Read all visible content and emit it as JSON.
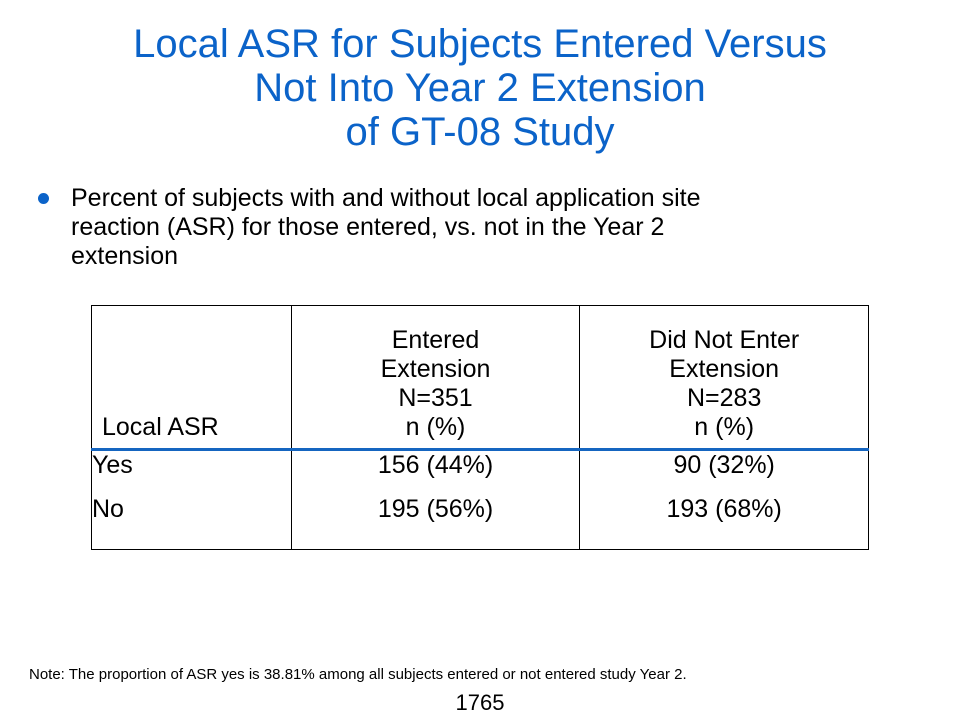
{
  "slide": {
    "title_lines": [
      "Local ASR for Subjects Entered Versus",
      "Not Into Year 2 Extension",
      "of GT-08 Study"
    ],
    "bullet": {
      "lines": [
        "Percent of subjects with and without local application site",
        "reaction (ASR) for those entered, vs. not in the Year 2",
        "extension"
      ]
    },
    "table": {
      "header": {
        "label": "Local ASR",
        "col1": [
          "Entered",
          "Extension",
          "N=351",
          "n (%)"
        ],
        "col2": [
          "Did Not Enter",
          "Extension",
          "N=283",
          "n (%)"
        ]
      },
      "rows": [
        {
          "label": "Yes",
          "col1": "156 (44%)",
          "col2": "90 (32%)"
        },
        {
          "label": "No",
          "col1": "195 (56%)",
          "col2": "193 (68%)"
        }
      ]
    },
    "note": "Note: The proportion of ASR yes is 38.81% among all subjects entered or not entered study Year 2.",
    "page_number": "1765"
  },
  "colors": {
    "title": "#0B63C9",
    "bullet_dot": "#0B63C9",
    "header_rule": "#1565C0"
  }
}
